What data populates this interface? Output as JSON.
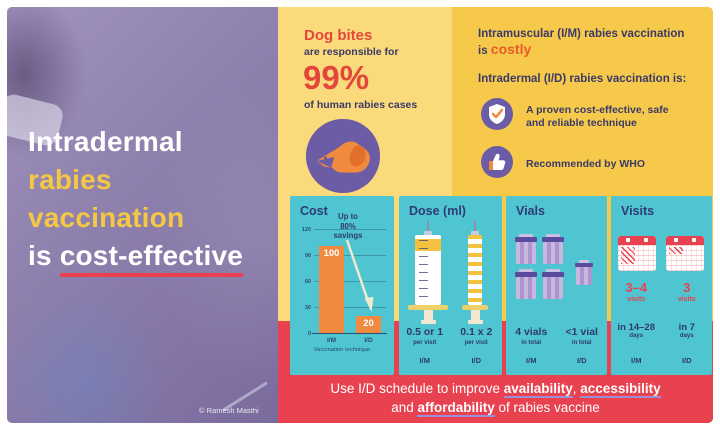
{
  "left_panel": {
    "title_line1": "Intradermal",
    "title_line2": "rabies",
    "title_line3": "vaccination",
    "title_line4_prefix": "is ",
    "title_line4_emphasis": "cost-effective",
    "credit": "© Ramesh Masthi"
  },
  "dog_panel": {
    "heading": "Dog bites",
    "subheading": "are responsible for",
    "stat": "99%",
    "caption": "of human rabies cases"
  },
  "right_panel": {
    "im_line1": "Intramuscular (I/M) rabies vaccination",
    "im_line2_prefix": "is ",
    "im_line2_emphasis": "costly",
    "id_heading": "Intradermal (I/D) rabies vaccination is:",
    "bullet1": "A proven cost-effective, safe and reliable technique",
    "bullet2": "Recommended by WHO"
  },
  "cards": {
    "cost": {
      "title": "Cost",
      "note": "Up to 80% savings",
      "xlabel": "Vaccination technique",
      "ticks": [
        "120",
        "90",
        "60",
        "30",
        "0"
      ],
      "categories": [
        "I/M",
        "I/D"
      ]
    },
    "dose": {
      "title": "Dose (ml)",
      "items": [
        {
          "value": "0.5 or 1",
          "unit": "per visit",
          "technique": "I/M"
        },
        {
          "value": "0.1 x 2",
          "unit": "per visit",
          "technique": "I/D"
        }
      ]
    },
    "vials": {
      "title": "Vials",
      "items": [
        {
          "value": "4 vials",
          "unit": "in total",
          "technique": "I/M"
        },
        {
          "value": "<1 vial",
          "unit": "in total",
          "technique": "I/D"
        }
      ]
    },
    "visits": {
      "title": "Visits",
      "items": [
        {
          "count": "3–4",
          "count_unit": "visits",
          "duration": "in 14–28",
          "duration_unit": "days",
          "technique": "I/M"
        },
        {
          "count": "3",
          "count_unit": "visits",
          "duration": "in 7",
          "duration_unit": "days",
          "technique": "I/D"
        }
      ]
    }
  },
  "footer": {
    "seg1": "Use I/D schedule to improve ",
    "word1": "availability",
    "seg2": ", ",
    "word2": "accessibility",
    "seg3": "and ",
    "word3": "affordability",
    "seg4": " of rabies vaccine"
  },
  "colors": {
    "accent_red": "#E8414F",
    "gold": "#F7C94B",
    "light_yellow": "#FBDA7C",
    "teal_card": "#4FC5D2",
    "orange_bar": "#F08A3F",
    "purple_icon": "#6B5CA5",
    "navy_text": "#2F3A68"
  },
  "chart_data": {
    "type": "bar",
    "title": "Cost",
    "categories": [
      "I/M",
      "I/D"
    ],
    "values": [
      100,
      20
    ],
    "xlabel": "Vaccination technique",
    "ylabel": "",
    "ylim": [
      0,
      120
    ],
    "yticks": [
      0,
      30,
      60,
      90,
      120
    ],
    "annotation": "Up to 80% savings",
    "legend": false,
    "grid": true
  }
}
